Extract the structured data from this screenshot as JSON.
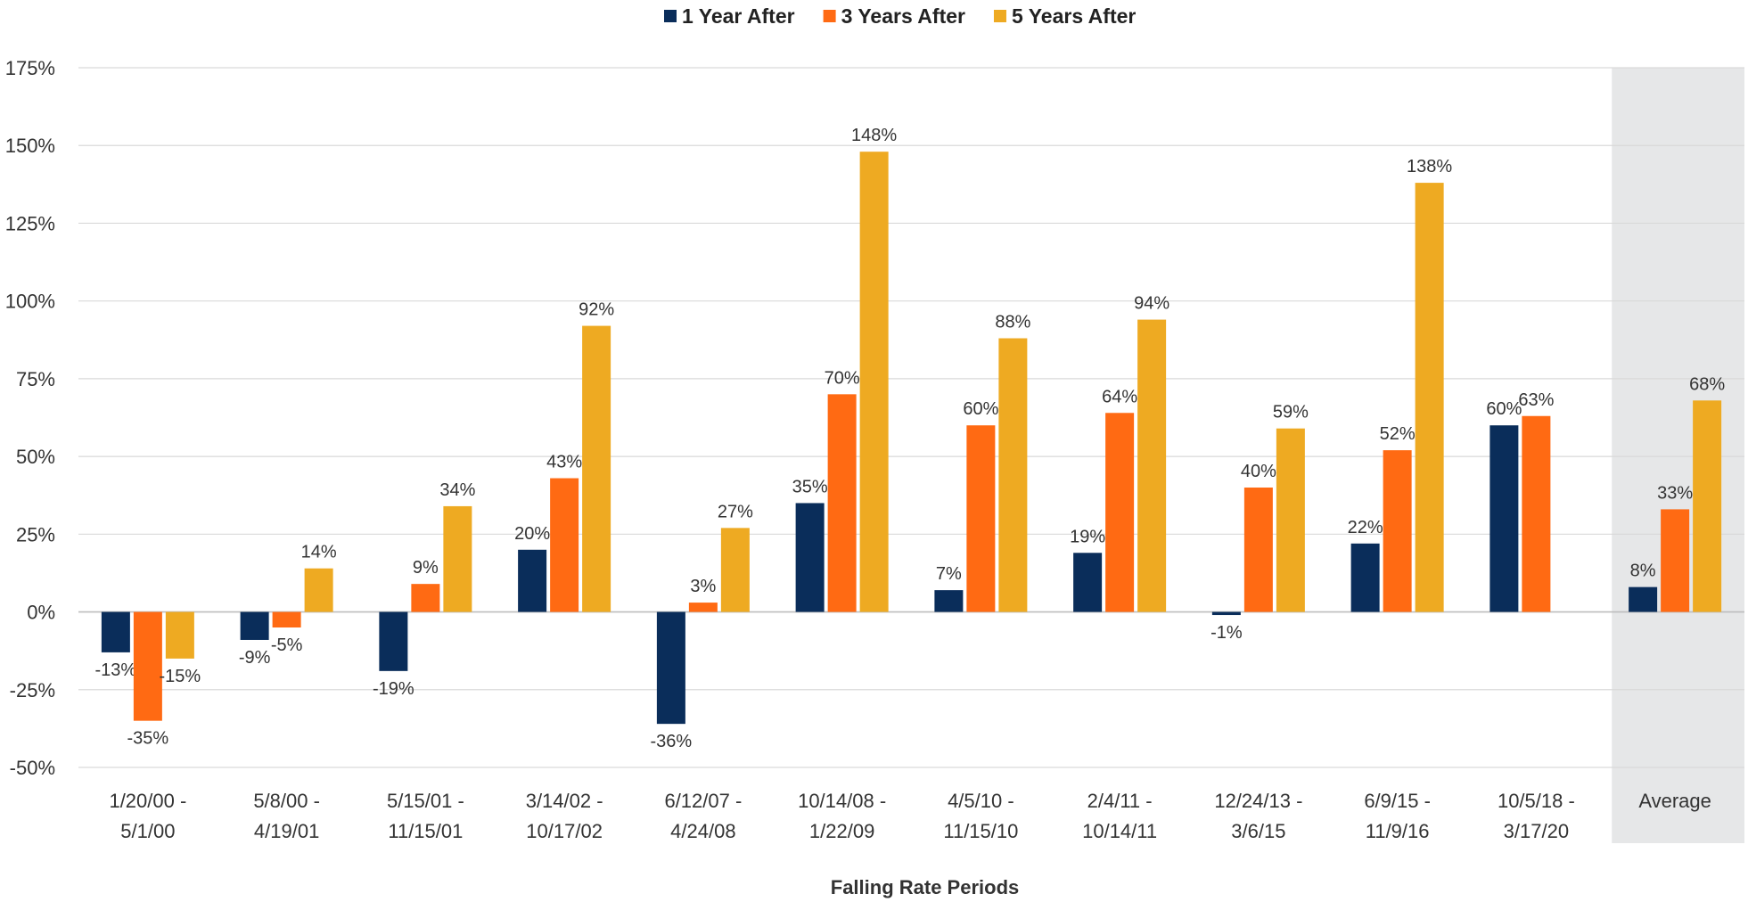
{
  "chart_data": {
    "type": "bar",
    "title": "",
    "xlabel": "Falling Rate Periods",
    "ylabel": "",
    "ylim": [
      -50,
      175
    ],
    "yticks": [
      175,
      150,
      125,
      100,
      75,
      50,
      25,
      0,
      -25,
      -50
    ],
    "ytick_labels": [
      "175%",
      "150%",
      "125%",
      "100%",
      "75%",
      "50%",
      "25%",
      "0%",
      "-25%",
      "-50%"
    ],
    "grid": true,
    "legend_position": "top-center",
    "categories": [
      [
        "1/20/00 -",
        "5/1/00"
      ],
      [
        "5/8/00 -",
        "4/19/01"
      ],
      [
        "5/15/01 -",
        "11/15/01"
      ],
      [
        "3/14/02 -",
        "10/17/02"
      ],
      [
        "6/12/07 -",
        "4/24/08"
      ],
      [
        "10/14/08 -",
        "1/22/09"
      ],
      [
        "4/5/10 -",
        "11/15/10"
      ],
      [
        "2/4/11 -",
        "10/14/11"
      ],
      [
        "12/24/13 -",
        "3/6/15"
      ],
      [
        "6/9/15 -",
        "11/9/16"
      ],
      [
        "10/5/18 -",
        "3/17/20"
      ],
      [
        "Average"
      ]
    ],
    "highlighted_category": "Average",
    "highlight_color": "#E6E7E8",
    "series": [
      {
        "name": "1 Year After",
        "color": "#0A2D5A",
        "values": [
          -13,
          -9,
          -19,
          20,
          -36,
          35,
          7,
          19,
          -1,
          22,
          60,
          8
        ],
        "labels": [
          "-13%",
          "-9%",
          "-19%",
          "20%",
          "-36%",
          "35%",
          "7%",
          "19%",
          "-1%",
          "22%",
          "60%",
          "8%"
        ]
      },
      {
        "name": "3 Years After",
        "color": "#FF6A13",
        "values": [
          -35,
          -5,
          9,
          43,
          3,
          70,
          60,
          64,
          40,
          52,
          63,
          33
        ],
        "labels": [
          "-35%",
          "-5%",
          "9%",
          "43%",
          "3%",
          "70%",
          "60%",
          "64%",
          "40%",
          "52%",
          "63%",
          "33%"
        ]
      },
      {
        "name": "5 Years After",
        "color": "#EEAA22",
        "values": [
          -15,
          14,
          34,
          92,
          27,
          148,
          88,
          94,
          59,
          138,
          null,
          68
        ],
        "labels": [
          "-15%",
          "14%",
          "34%",
          "92%",
          "27%",
          "148%",
          "88%",
          "94%",
          "59%",
          "138%",
          null,
          "68%"
        ]
      }
    ]
  }
}
